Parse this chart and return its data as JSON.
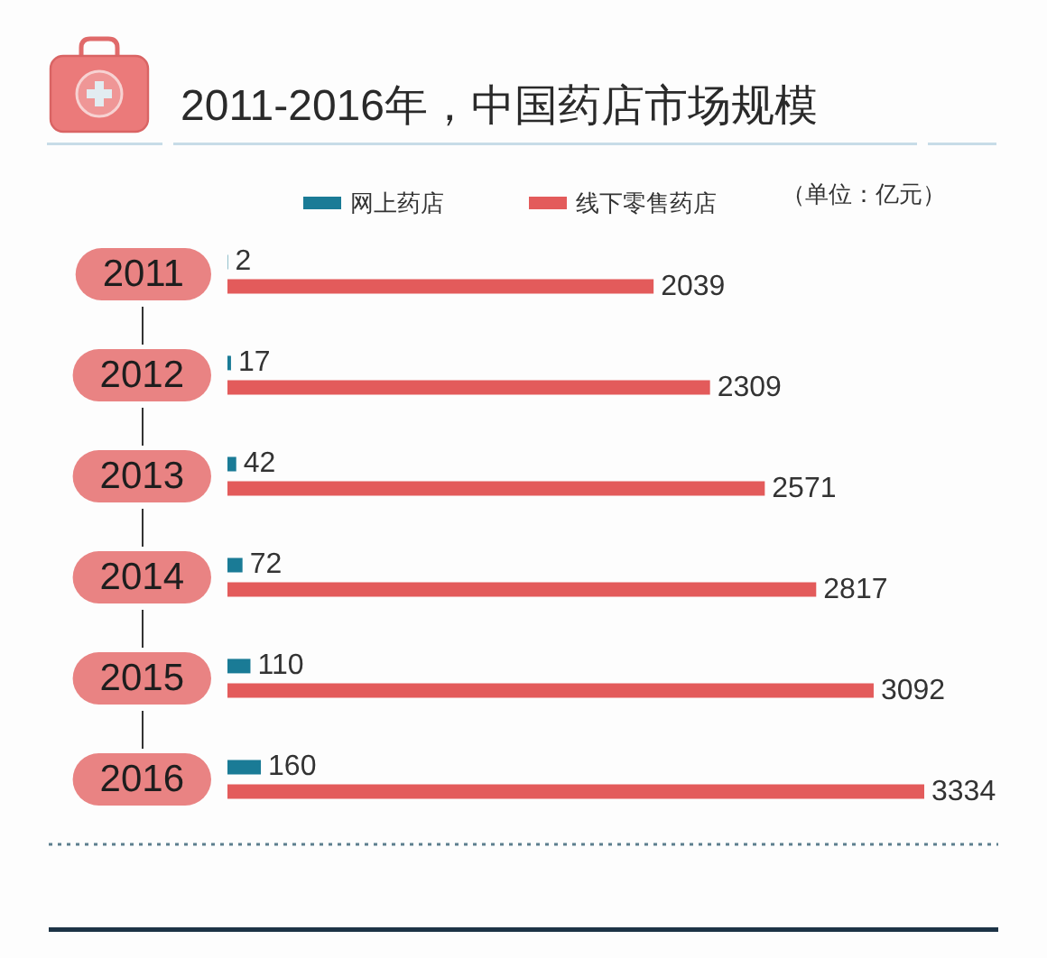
{
  "chart_data": {
    "type": "bar",
    "orientation": "horizontal",
    "title": "2011-2016年，中国药店市场规模",
    "categories": [
      "2011",
      "2012",
      "2013",
      "2014",
      "2015",
      "2016"
    ],
    "series": [
      {
        "name": "网上药店",
        "color": "#1a7b96",
        "values": [
          2,
          17,
          42,
          72,
          110,
          160
        ]
      },
      {
        "name": "线下零售药店",
        "color": "#e35b5b",
        "values": [
          2039,
          2309,
          2571,
          2817,
          3092,
          3334
        ]
      }
    ],
    "annotations": [
      "（单位：亿元）"
    ],
    "data_labels": true,
    "legend": "top",
    "tick_labels": "y"
  }
}
